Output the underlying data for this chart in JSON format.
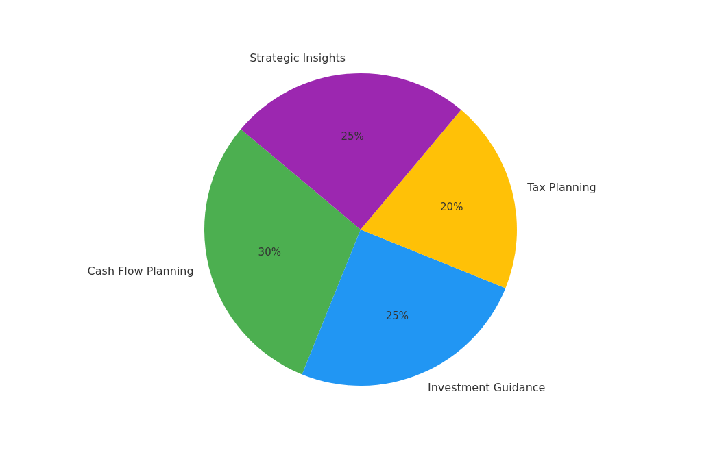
{
  "chart_data": {
    "type": "pie",
    "categories": [
      "Cash Flow Planning",
      "Investment Guidance",
      "Tax Planning",
      "Strategic Insights"
    ],
    "values": [
      30,
      25,
      20,
      25
    ],
    "colors": [
      "#4caf50",
      "#2196f3",
      "#ffc107",
      "#9c27b0"
    ],
    "value_labels": [
      "30%",
      "25%",
      "20%",
      "25%"
    ]
  }
}
